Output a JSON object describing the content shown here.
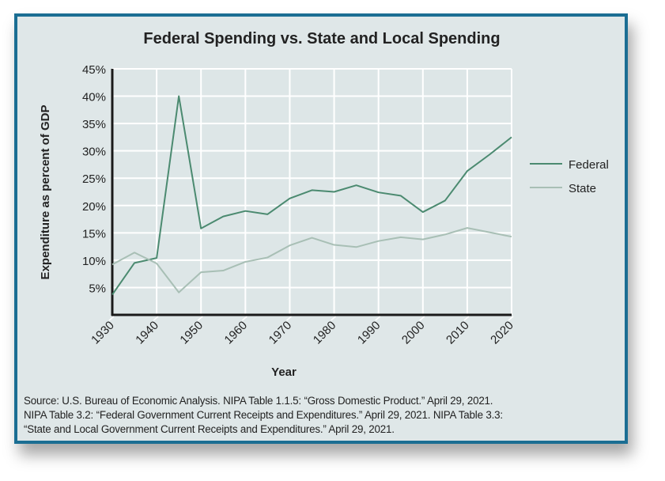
{
  "chart_data": {
    "type": "line",
    "title": "Federal Spending vs. State and Local Spending",
    "xlabel": "Year",
    "ylabel": "Expenditure as percent of GDP",
    "x": [
      1930,
      1935,
      1940,
      1945,
      1950,
      1955,
      1960,
      1965,
      1970,
      1975,
      1980,
      1985,
      1990,
      1995,
      2000,
      2005,
      2010,
      2015,
      2020
    ],
    "x_ticks": [
      "1930",
      "1940",
      "1950",
      "1960",
      "1970",
      "1980",
      "1990",
      "2000",
      "2010",
      "2020"
    ],
    "y_ticks": [
      "5%",
      "10%",
      "15%",
      "20%",
      "25%",
      "30%",
      "35%",
      "40%",
      "45%"
    ],
    "xlim": [
      1930,
      2020
    ],
    "ylim": [
      0,
      45
    ],
    "grid": true,
    "legend_placement": "right",
    "series": [
      {
        "name": "Federal",
        "color": "#4b8a70",
        "values": [
          3.7,
          9.5,
          10.4,
          40.0,
          15.8,
          18.0,
          19.0,
          18.4,
          21.3,
          22.8,
          22.5,
          23.7,
          22.4,
          21.8,
          18.8,
          20.9,
          26.3,
          29.3,
          32.5
        ]
      },
      {
        "name": "State",
        "color": "#a8bfb5",
        "values": [
          9.2,
          11.4,
          9.4,
          4.1,
          7.8,
          8.1,
          9.7,
          10.5,
          12.7,
          14.1,
          12.8,
          12.4,
          13.5,
          14.2,
          13.8,
          14.7,
          15.9,
          15.1,
          14.3
        ]
      }
    ]
  },
  "source": [
    "Source: U.S. Bureau of Economic Analysis. NIPA Table 1.1.5: “Gross Domestic Product.” April 29, 2021.",
    "NIPA Table 3.2: “Federal Government Current Receipts and Expenditures.” April 29, 2021. NIPA Table 3.3:",
    "“State and Local Government Current Receipts and Expenditures.” April 29, 2021."
  ],
  "colors": {
    "border": "#1b6e93",
    "background": "#dfe7e8"
  }
}
